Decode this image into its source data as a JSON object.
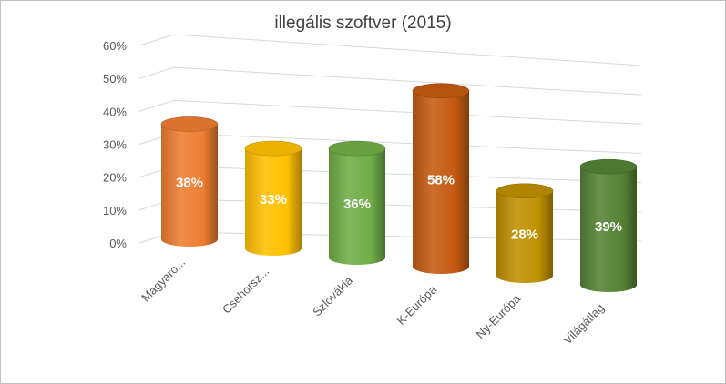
{
  "chart_data": {
    "type": "bar",
    "style": "3d-cylinder",
    "title": "illegális szoftver (2015)",
    "xlabel": "",
    "ylabel": "",
    "ylim": [
      0,
      60
    ],
    "yticks": [
      "0%",
      "10%",
      "20%",
      "30%",
      "40%",
      "50%",
      "60%"
    ],
    "grid": true,
    "legend": "none",
    "categories": [
      "Magyaro...",
      "Csehorsz...",
      "Szlovákia",
      "K-Európa",
      "Ny-Európa",
      "Világátlag"
    ],
    "values": [
      38,
      33,
      36,
      58,
      28,
      39
    ],
    "data_labels": [
      "38%",
      "33%",
      "36%",
      "58%",
      "28%",
      "39%"
    ],
    "colors": [
      "#ed7d31",
      "#ffc000",
      "#70ad47",
      "#c55a11",
      "#bf9000",
      "#548235"
    ]
  }
}
